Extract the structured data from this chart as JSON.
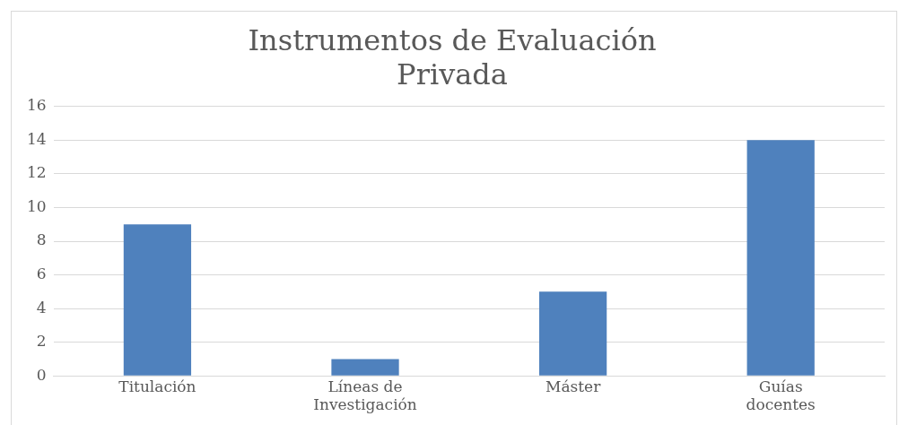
{
  "chart_data": {
    "type": "bar",
    "title": "Instrumentos de Evaluación\nPrivada",
    "categories": [
      "Titulación",
      "Líneas de Investigación",
      "Máster",
      "Guías docentes"
    ],
    "values": [
      9,
      1,
      5,
      14
    ],
    "color": "#4f81bd",
    "ylim": [
      0,
      16
    ],
    "yticks": [
      0,
      2,
      4,
      6,
      8,
      10,
      12,
      14,
      16
    ],
    "grid": "y"
  }
}
